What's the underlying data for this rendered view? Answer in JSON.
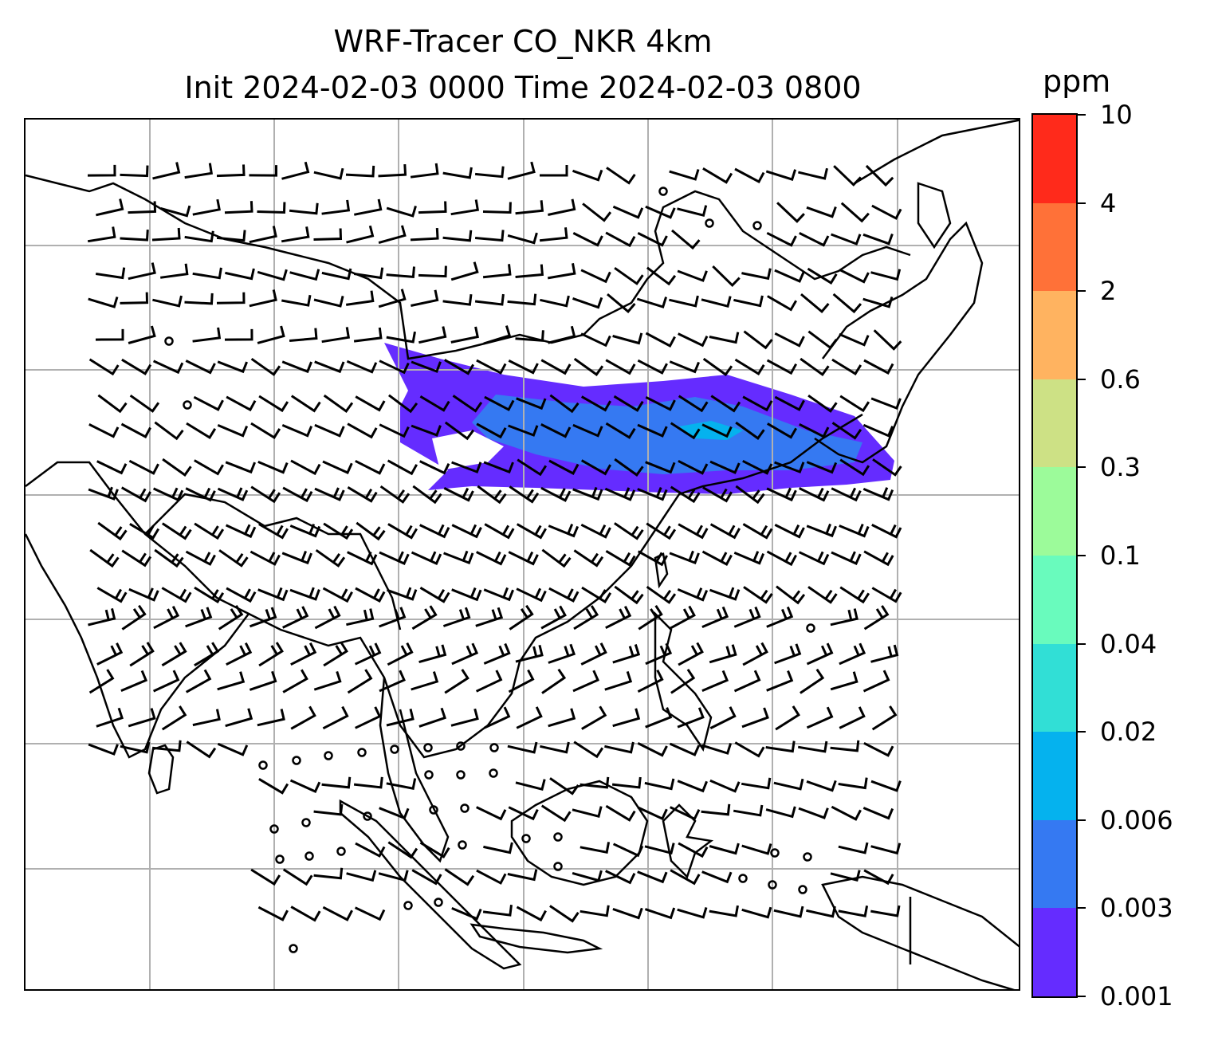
{
  "figure": {
    "title_line1": "WRF-Tracer CO_NKR 4km",
    "title_line2": "Init 2024-02-03 0000 Time 2024-02-03 0800"
  },
  "colorbar": {
    "unit": "ppm",
    "levels": [
      "0.001",
      "0.003",
      "0.006",
      "0.02",
      "0.04",
      "0.1",
      "0.3",
      "0.6",
      "2",
      "4",
      "10"
    ],
    "colors": [
      "#652cff",
      "#3579f2",
      "#05b2ee",
      "#31dfd6",
      "#69fbbd",
      "#9cfb9a",
      "#cde185",
      "#ffb360",
      "#ff7138",
      "#ff2a1b"
    ]
  },
  "map": {
    "gridlines": true,
    "coastline_color": "#000000",
    "tracer_plume_colors": [
      "#652cff",
      "#3579f2",
      "#05b2ee"
    ],
    "wind_barbs": "black",
    "calm_marker": "circle"
  }
}
